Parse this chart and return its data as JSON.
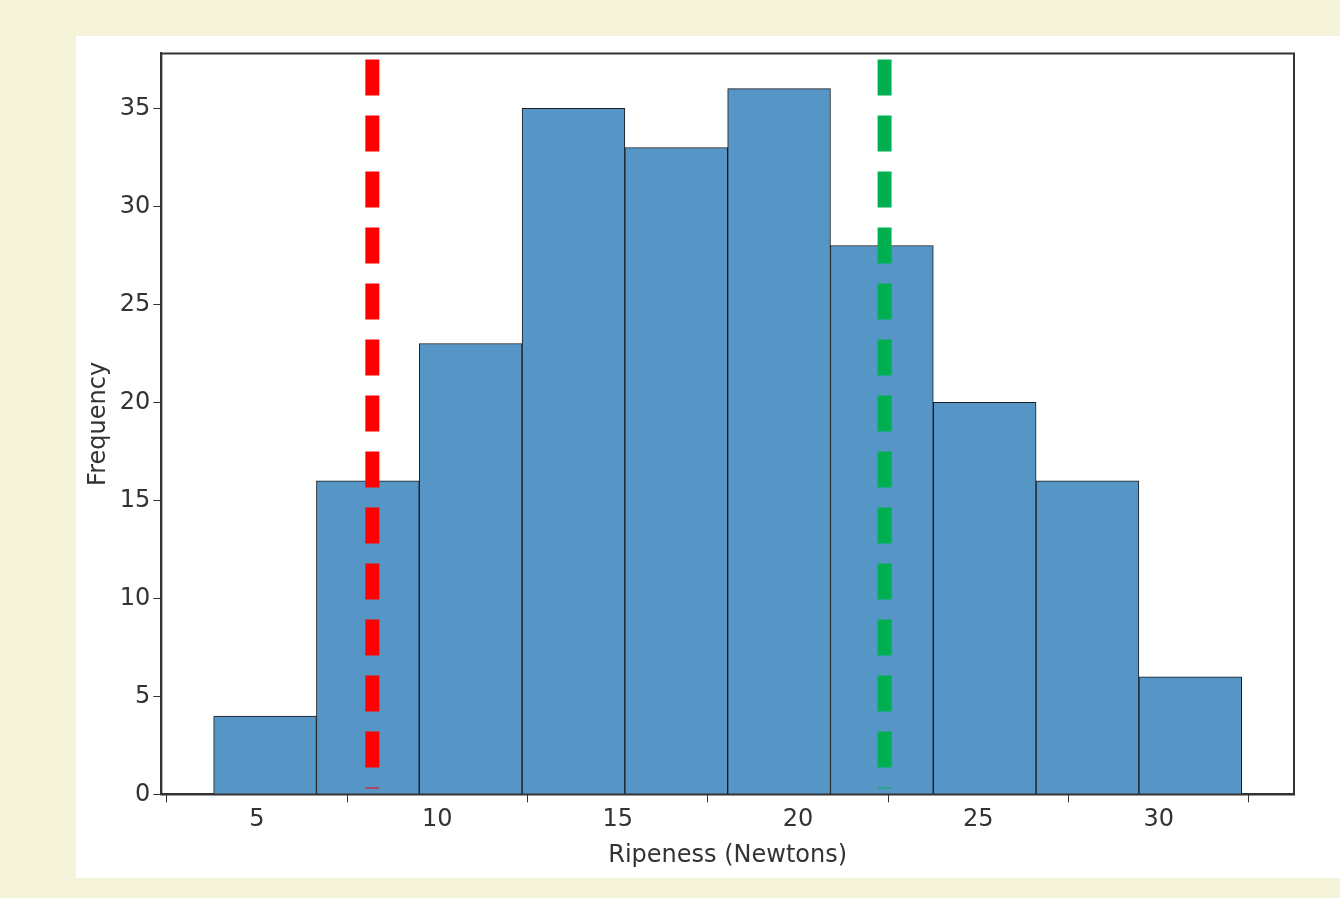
{
  "chart_data": {
    "type": "histogram",
    "xlabel": "Ripeness (Newtons)",
    "ylabel": "Frequency",
    "bins": [
      3.8,
      6.65,
      9.5,
      12.35,
      15.2,
      18.05,
      20.9,
      23.75,
      26.6,
      29.45,
      32.3
    ],
    "values": [
      4,
      16,
      23,
      35,
      33,
      36,
      28,
      20,
      16,
      6
    ],
    "color": "#5596c6",
    "xlim": [
      2.35,
      33.75
    ],
    "xticks": [
      5,
      10,
      15,
      20,
      25,
      30
    ],
    "ylim": [
      0,
      37.8
    ],
    "yticks": [
      0,
      5,
      10,
      15,
      20,
      25,
      30,
      35
    ],
    "ref_lines": [
      {
        "axis": "x",
        "value": 8.2,
        "color": "#ff0000",
        "line_style": "dashed"
      },
      {
        "axis": "x",
        "value": 22.4,
        "color": "#00b050",
        "line_style": "dashed"
      }
    ],
    "grid": false,
    "legend": false
  }
}
